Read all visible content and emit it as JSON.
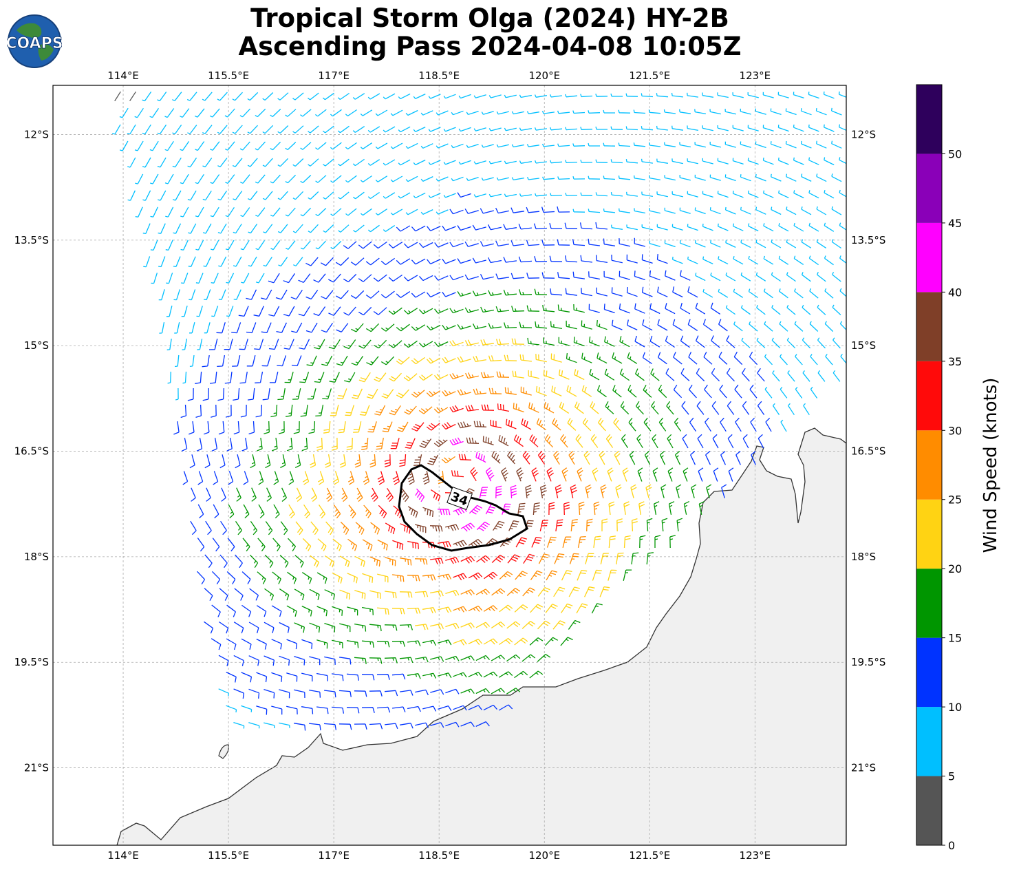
{
  "title": {
    "line1": "Tropical Storm Olga (2024) HY-2B",
    "line2": "Ascending Pass 2024-04-08 10:05Z"
  },
  "logo": {
    "text": "COAPS",
    "colors": {
      "ocean": "#1f5fae",
      "land": "#3d8a3a"
    }
  },
  "map": {
    "lon_range": [
      113.0,
      124.3
    ],
    "lat_range": [
      -22.1,
      -11.3
    ],
    "lon_ticks": [
      "114°E",
      "115.5°E",
      "117°E",
      "118.5°E",
      "120°E",
      "121.5°E",
      "123°E"
    ],
    "lon_tick_values": [
      114,
      115.5,
      117,
      118.5,
      120,
      121.5,
      123
    ],
    "lat_ticks": [
      "12°S",
      "13.5°S",
      "15°S",
      "16.5°S",
      "18°S",
      "19.5°S",
      "21°S"
    ],
    "lat_tick_values": [
      -12,
      -13.5,
      -15,
      -16.5,
      -18,
      -19.5,
      -21
    ],
    "grid": true,
    "land_color": "#f0f0f0",
    "coast_color": "#333333"
  },
  "storm": {
    "center_lon": 118.75,
    "center_lat": -16.9,
    "r34_label": "34"
  },
  "colorbar": {
    "label": "Wind Speed (knots)",
    "ticks": [
      "0",
      "5",
      "10",
      "15",
      "20",
      "25",
      "30",
      "35",
      "40",
      "45",
      "50"
    ],
    "bins": [
      {
        "min": 0,
        "max": 5,
        "color": "#555555"
      },
      {
        "min": 5,
        "max": 10,
        "color": "#00bfff"
      },
      {
        "min": 10,
        "max": 15,
        "color": "#0033ff"
      },
      {
        "min": 15,
        "max": 20,
        "color": "#009600"
      },
      {
        "min": 20,
        "max": 25,
        "color": "#ffd313"
      },
      {
        "min": 25,
        "max": 30,
        "color": "#ff8c00"
      },
      {
        "min": 30,
        "max": 35,
        "color": "#ff0a0a"
      },
      {
        "min": 35,
        "max": 40,
        "color": "#7f3f28"
      },
      {
        "min": 40,
        "max": 45,
        "color": "#ff00ff"
      },
      {
        "min": 45,
        "max": 50,
        "color": "#8a00b8"
      },
      {
        "min": 50,
        "max": 55,
        "color": "#2e005c"
      }
    ]
  }
}
